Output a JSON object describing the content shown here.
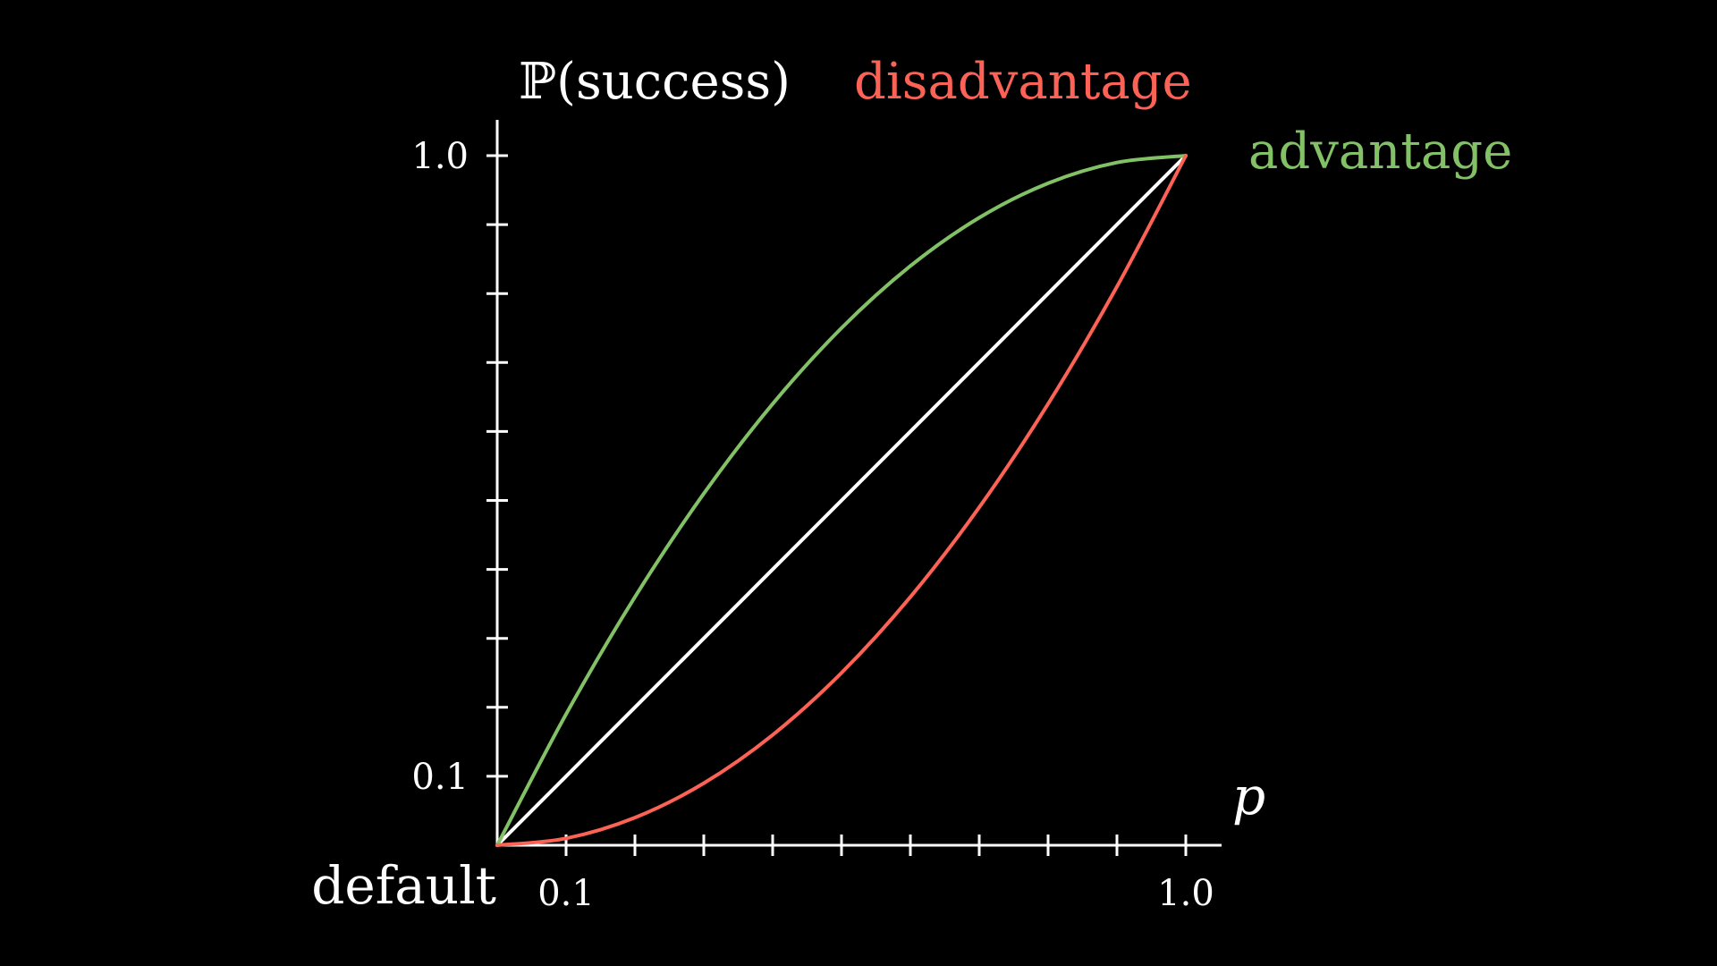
{
  "chart_data": {
    "type": "line",
    "xlabel": "p",
    "ylabel": "ℙ(success)",
    "corner_label": "default",
    "xlim": [
      0,
      1
    ],
    "ylim": [
      0,
      1
    ],
    "x_tick_count": 10,
    "y_tick_count": 10,
    "x_tick_labels": [
      {
        "value": 0.1,
        "label": "0.1"
      },
      {
        "value": 1.0,
        "label": "1.0"
      }
    ],
    "y_tick_labels": [
      {
        "value": 0.1,
        "label": "0.1"
      },
      {
        "value": 1.0,
        "label": "1.0"
      }
    ],
    "series": [
      {
        "name": "default",
        "color": "#ffffff",
        "x": [
          0,
          0.1,
          0.2,
          0.3,
          0.4,
          0.5,
          0.6,
          0.7,
          0.8,
          0.9,
          1.0
        ],
        "y": [
          0,
          0.1,
          0.2,
          0.3,
          0.4,
          0.5,
          0.6,
          0.7,
          0.8,
          0.9,
          1.0
        ]
      },
      {
        "name": "advantage",
        "color": "#83c167",
        "x": [
          0,
          0.1,
          0.2,
          0.3,
          0.4,
          0.5,
          0.6,
          0.7,
          0.8,
          0.9,
          1.0
        ],
        "y": [
          0,
          0.19,
          0.36,
          0.51,
          0.64,
          0.75,
          0.84,
          0.91,
          0.96,
          0.99,
          1.0
        ]
      },
      {
        "name": "disadvantage",
        "color": "#fc6255",
        "x": [
          0,
          0.1,
          0.2,
          0.3,
          0.4,
          0.5,
          0.6,
          0.7,
          0.8,
          0.9,
          1.0
        ],
        "y": [
          0,
          0.01,
          0.04,
          0.09,
          0.16,
          0.25,
          0.36,
          0.49,
          0.64,
          0.81,
          1.0
        ]
      }
    ],
    "series_labels": [
      {
        "text": "advantage",
        "color": "#83c167"
      },
      {
        "text": "disadvantage",
        "color": "#fc6255"
      }
    ]
  }
}
